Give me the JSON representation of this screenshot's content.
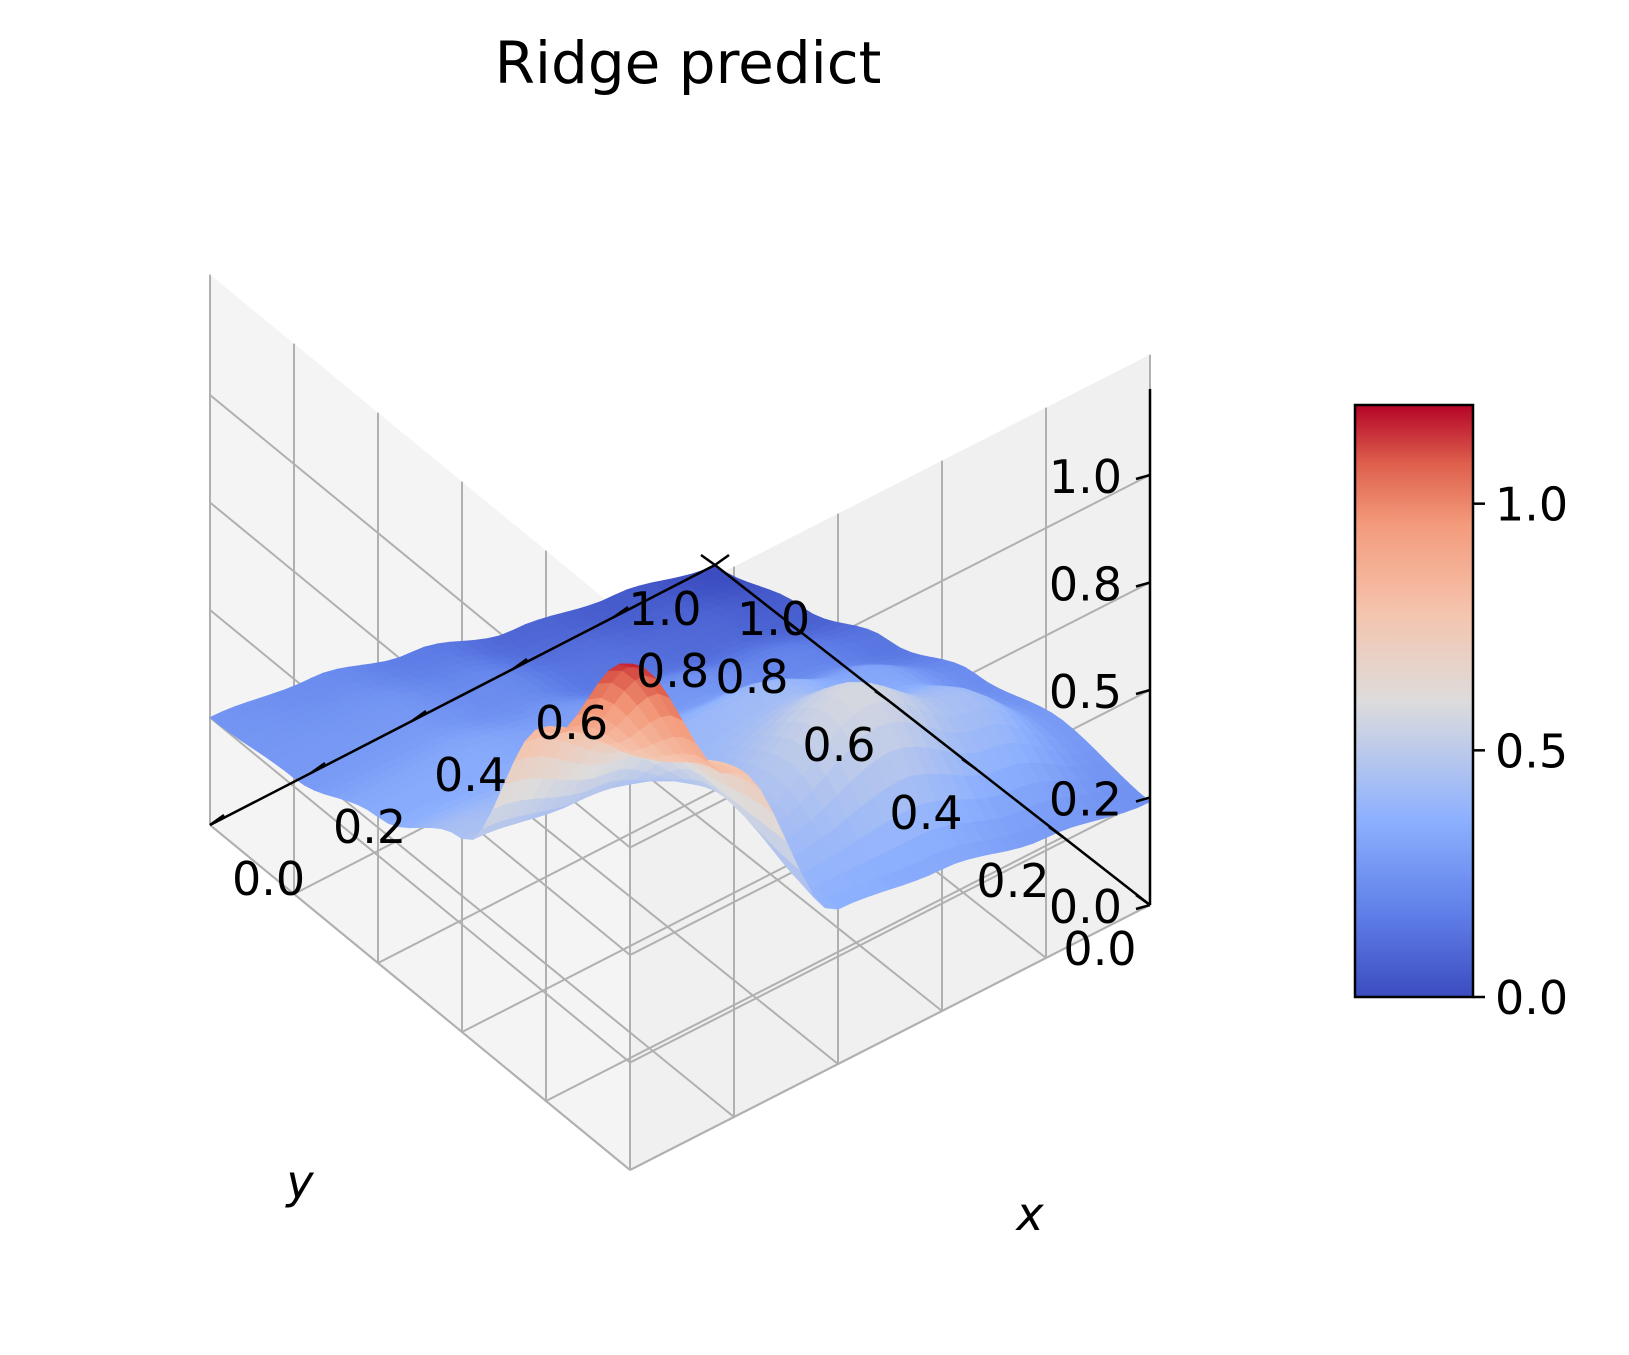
{
  "chart_data": {
    "type": "surface3d",
    "title": "Ridge predict",
    "xlabel": "x",
    "ylabel": "y",
    "zlabel": "",
    "xlim": [
      0,
      1
    ],
    "ylim": [
      0,
      1
    ],
    "zlim": [
      0,
      1.2
    ],
    "x_ticks": [
      "0.0",
      "0.2",
      "0.4",
      "0.6",
      "0.8",
      "1.0"
    ],
    "y_ticks": [
      "0.0",
      "0.2",
      "0.4",
      "0.6",
      "0.8",
      "1.0"
    ],
    "z_ticks": [
      "0.0",
      "0.2",
      "0.5",
      "0.8",
      "1.0"
    ],
    "colormap": "coolwarm",
    "colorbar": {
      "ticks": [
        "0.0",
        "0.5",
        "1.0"
      ],
      "range": [
        0,
        1.2
      ]
    },
    "surface": {
      "x": [
        0.0,
        0.2,
        0.4,
        0.6,
        0.8,
        1.0
      ],
      "y": [
        0.0,
        0.2,
        0.4,
        0.6,
        0.8,
        1.0
      ],
      "z": [
        [
          1.17,
          0.86,
          0.45,
          0.34,
          0.27,
          0.25
        ],
        [
          0.8,
          0.7,
          0.42,
          0.34,
          0.27,
          0.22
        ],
        [
          0.36,
          0.45,
          0.4,
          0.3,
          0.22,
          0.16
        ],
        [
          0.33,
          0.58,
          0.42,
          0.26,
          0.14,
          0.09
        ],
        [
          0.28,
          0.44,
          0.33,
          0.2,
          0.1,
          0.05
        ],
        [
          0.24,
          0.27,
          0.22,
          0.14,
          0.06,
          0.0
        ]
      ]
    },
    "grid": true
  }
}
